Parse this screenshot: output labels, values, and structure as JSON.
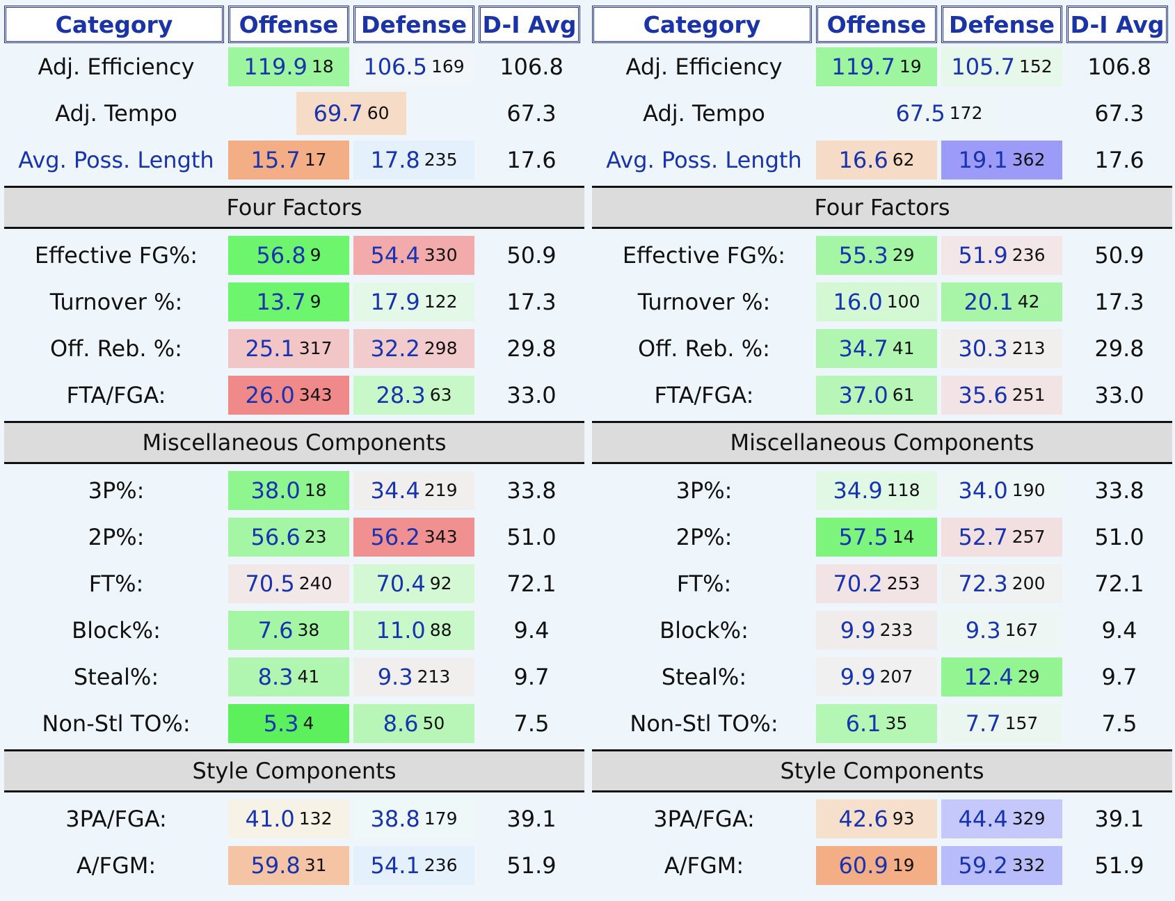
{
  "headers": {
    "category": "Category",
    "offense": "Offense",
    "defense": "Defense",
    "avg": "D-I Avg"
  },
  "sections": {
    "four_factors": "Four Factors",
    "misc": "Miscellaneous Components",
    "style": "Style Components"
  },
  "colors": {
    "green_strong": "#6df56d",
    "green_mid": "#9df59d",
    "green_light": "#c8f8c8",
    "green_faint": "#e4f8e8",
    "neutral": "#f1eeee",
    "red_light": "#f2cccc",
    "red_mid": "#f2aaaa",
    "red_strong": "#f08a8a",
    "orange_light": "#f6e0cc",
    "orange_mid": "#f4c8a8",
    "orange_strong": "#f4ae86",
    "blue_faint": "#e4f0fb",
    "blue_mid": "#c4c8fa",
    "blue_strong": "#9c9cf8",
    "cream": "#f6f2e6"
  },
  "panels": [
    {
      "rows": {
        "adj_eff": {
          "label": "Adj. Efficiency",
          "off_val": "119.9",
          "off_rank": "18",
          "def_val": "106.5",
          "def_rank": "169",
          "avg": "106.8"
        },
        "adj_tempo": {
          "label": "Adj. Tempo",
          "val": "69.7",
          "rank": "60",
          "avg": "67.3"
        },
        "apl": {
          "label": "Avg. Poss. Length",
          "off_val": "15.7",
          "off_rank": "17",
          "def_val": "17.8",
          "def_rank": "235",
          "avg": "17.6"
        },
        "efg": {
          "label": "Effective FG%:",
          "off_val": "56.8",
          "off_rank": "9",
          "def_val": "54.4",
          "def_rank": "330",
          "avg": "50.9"
        },
        "tov": {
          "label": "Turnover %:",
          "off_val": "13.7",
          "off_rank": "9",
          "def_val": "17.9",
          "def_rank": "122",
          "avg": "17.3"
        },
        "orb": {
          "label": "Off. Reb. %:",
          "off_val": "25.1",
          "off_rank": "317",
          "def_val": "32.2",
          "def_rank": "298",
          "avg": "29.8"
        },
        "ftr": {
          "label": "FTA/FGA:",
          "off_val": "26.0",
          "off_rank": "343",
          "def_val": "28.3",
          "def_rank": "63",
          "avg": "33.0"
        },
        "p3": {
          "label": "3P%:",
          "off_val": "38.0",
          "off_rank": "18",
          "def_val": "34.4",
          "def_rank": "219",
          "avg": "33.8"
        },
        "p2": {
          "label": "2P%:",
          "off_val": "56.6",
          "off_rank": "23",
          "def_val": "56.2",
          "def_rank": "343",
          "avg": "51.0"
        },
        "ft": {
          "label": "FT%:",
          "off_val": "70.5",
          "off_rank": "240",
          "def_val": "70.4",
          "def_rank": "92",
          "avg": "72.1"
        },
        "blk": {
          "label": "Block%:",
          "off_val": "7.6",
          "off_rank": "38",
          "def_val": "11.0",
          "def_rank": "88",
          "avg": "9.4"
        },
        "stl": {
          "label": "Steal%:",
          "off_val": "8.3",
          "off_rank": "41",
          "def_val": "9.3",
          "def_rank": "213",
          "avg": "9.7"
        },
        "nst": {
          "label": "Non-Stl TO%:",
          "off_val": "5.3",
          "off_rank": "4",
          "def_val": "8.6",
          "def_rank": "50",
          "avg": "7.5"
        },
        "p3a": {
          "label": "3PA/FGA:",
          "off_val": "41.0",
          "off_rank": "132",
          "def_val": "38.8",
          "def_rank": "179",
          "avg": "39.1"
        },
        "ast": {
          "label": "A/FGM:",
          "off_val": "59.8",
          "off_rank": "31",
          "def_val": "54.1",
          "def_rank": "236",
          "avg": "51.9"
        }
      }
    },
    {
      "rows": {
        "adj_eff": {
          "label": "Adj. Efficiency",
          "off_val": "119.7",
          "off_rank": "19",
          "def_val": "105.7",
          "def_rank": "152",
          "avg": "106.8"
        },
        "adj_tempo": {
          "label": "Adj. Tempo",
          "val": "67.5",
          "rank": "172",
          "avg": "67.3"
        },
        "apl": {
          "label": "Avg. Poss. Length",
          "off_val": "16.6",
          "off_rank": "62",
          "def_val": "19.1",
          "def_rank": "362",
          "avg": "17.6"
        },
        "efg": {
          "label": "Effective FG%:",
          "off_val": "55.3",
          "off_rank": "29",
          "def_val": "51.9",
          "def_rank": "236",
          "avg": "50.9"
        },
        "tov": {
          "label": "Turnover %:",
          "off_val": "16.0",
          "off_rank": "100",
          "def_val": "20.1",
          "def_rank": "42",
          "avg": "17.3"
        },
        "orb": {
          "label": "Off. Reb. %:",
          "off_val": "34.7",
          "off_rank": "41",
          "def_val": "30.3",
          "def_rank": "213",
          "avg": "29.8"
        },
        "ftr": {
          "label": "FTA/FGA:",
          "off_val": "37.0",
          "off_rank": "61",
          "def_val": "35.6",
          "def_rank": "251",
          "avg": "33.0"
        },
        "p3": {
          "label": "3P%:",
          "off_val": "34.9",
          "off_rank": "118",
          "def_val": "34.0",
          "def_rank": "190",
          "avg": "33.8"
        },
        "p2": {
          "label": "2P%:",
          "off_val": "57.5",
          "off_rank": "14",
          "def_val": "52.7",
          "def_rank": "257",
          "avg": "51.0"
        },
        "ft": {
          "label": "FT%:",
          "off_val": "70.2",
          "off_rank": "253",
          "def_val": "72.3",
          "def_rank": "200",
          "avg": "72.1"
        },
        "blk": {
          "label": "Block%:",
          "off_val": "9.9",
          "off_rank": "233",
          "def_val": "9.3",
          "def_rank": "167",
          "avg": "9.4"
        },
        "stl": {
          "label": "Steal%:",
          "off_val": "9.9",
          "off_rank": "207",
          "def_val": "12.4",
          "def_rank": "29",
          "avg": "9.7"
        },
        "nst": {
          "label": "Non-Stl TO%:",
          "off_val": "6.1",
          "off_rank": "35",
          "def_val": "7.7",
          "def_rank": "157",
          "avg": "7.5"
        },
        "p3a": {
          "label": "3PA/FGA:",
          "off_val": "42.6",
          "off_rank": "93",
          "def_val": "44.4",
          "def_rank": "329",
          "avg": "39.1"
        },
        "ast": {
          "label": "A/FGM:",
          "off_val": "60.9",
          "off_rank": "19",
          "def_val": "59.2",
          "def_rank": "332",
          "avg": "51.9"
        }
      }
    }
  ]
}
